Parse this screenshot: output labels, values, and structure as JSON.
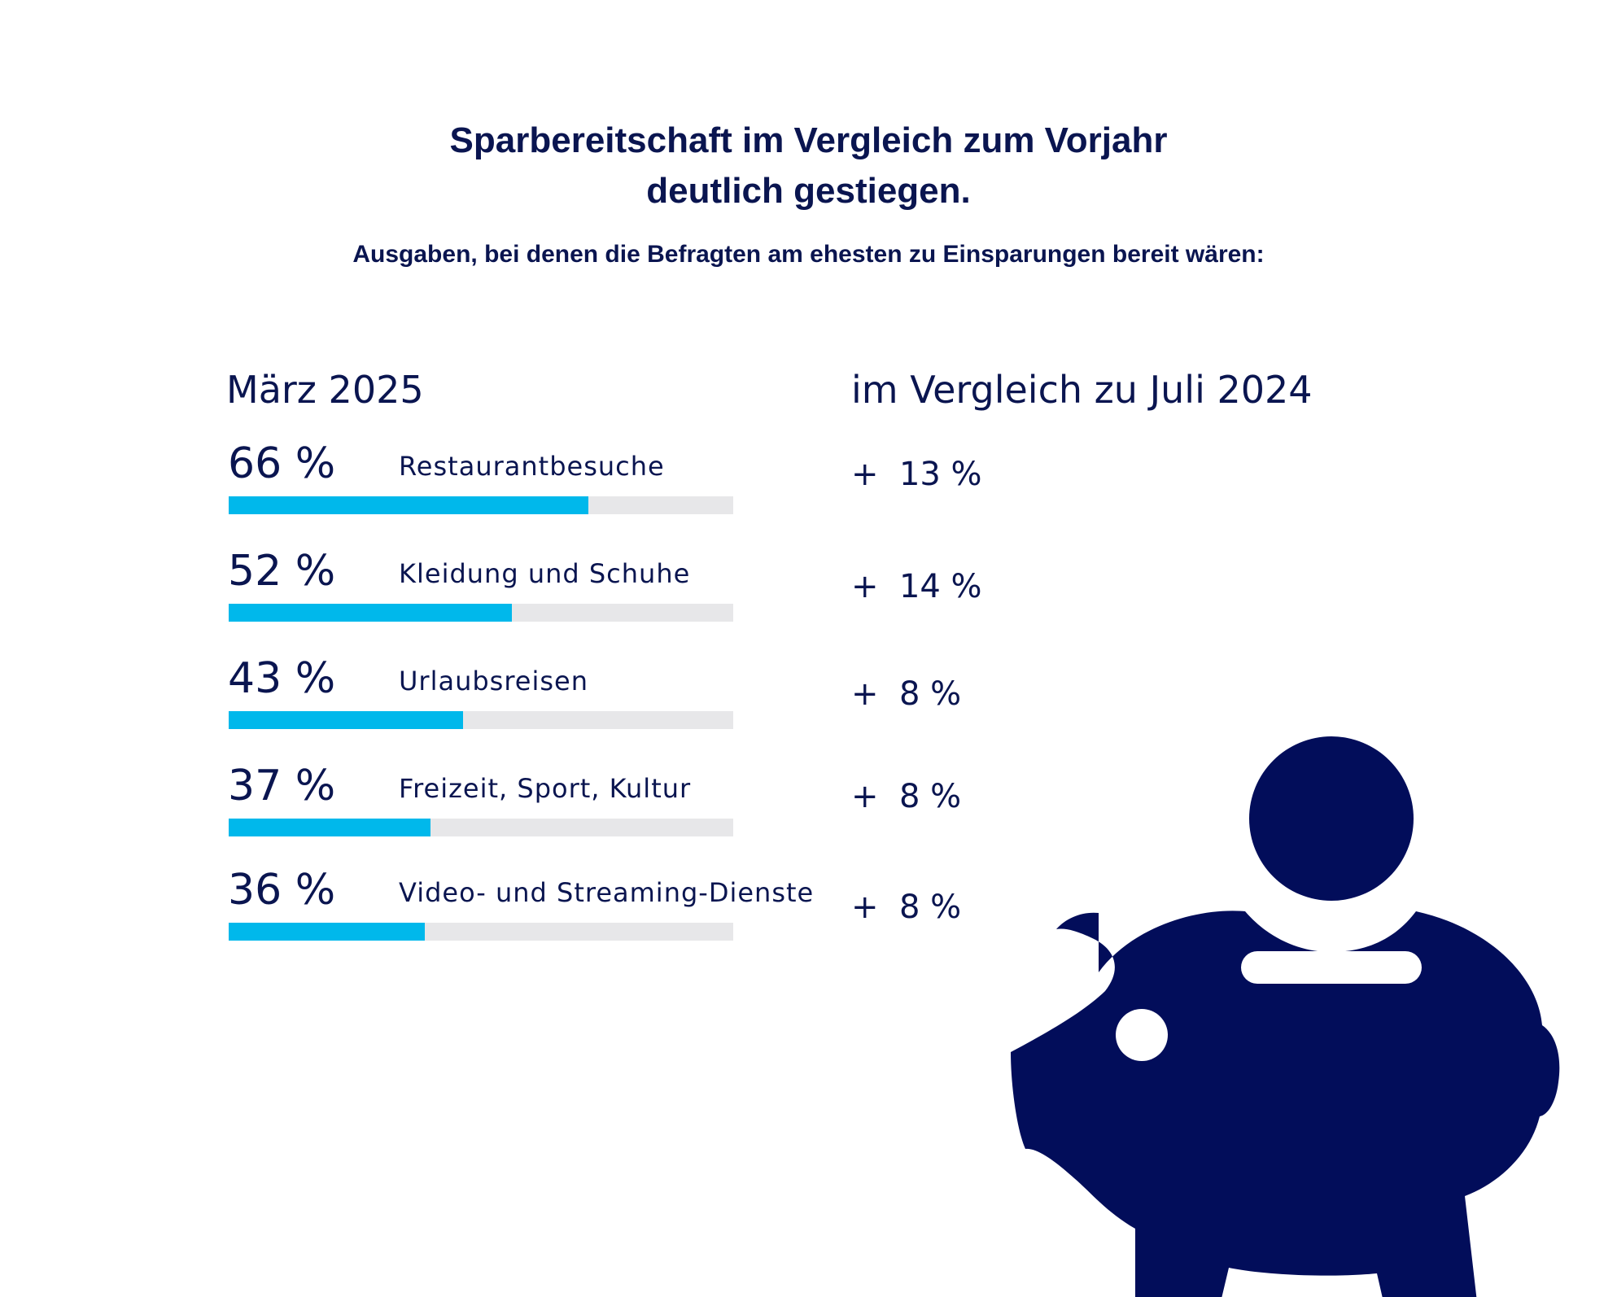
{
  "title_line1": "Sparbereitschaft im Vergleich zum Vorjahr",
  "title_line2": "deutlich gestiegen.",
  "subtitle": "Ausgaben, bei denen die Befragten am ehesten zu Einsparungen bereit wären:",
  "columns": {
    "left": "März 2025",
    "right": "im Vergleich zu Juli 2024"
  },
  "colors": {
    "text": "#0a1550",
    "bar": "#00b8eb",
    "track": "#e7e7e9",
    "icon": "#020d5a"
  },
  "icon": "piggy-bank-icon",
  "chart_data": {
    "type": "bar",
    "orientation": "horizontal",
    "title": "Sparbereitschaft im Vergleich zum Vorjahr deutlich gestiegen.",
    "subtitle": "Ausgaben, bei denen die Befragten am ehesten zu Einsparungen bereit wären:",
    "ylim": [
      0,
      100
    ],
    "categories": [
      "Restaurantbesuche",
      "Kleidung und Schuhe",
      "Urlaubsreisen",
      "Freizeit, Sport, Kultur",
      "Video- und Streaming-Dienste"
    ],
    "values": [
      66,
      52,
      43,
      37,
      36
    ],
    "value_labels": [
      "66 %",
      "52 %",
      "43 %",
      "37 %",
      "36 %"
    ],
    "change_vs_july_2024": [
      13,
      14,
      8,
      8,
      8
    ],
    "change_labels": [
      "+  13 %",
      "+  14 %",
      "+  8 %",
      "+  8 %",
      "+  8 %"
    ]
  }
}
